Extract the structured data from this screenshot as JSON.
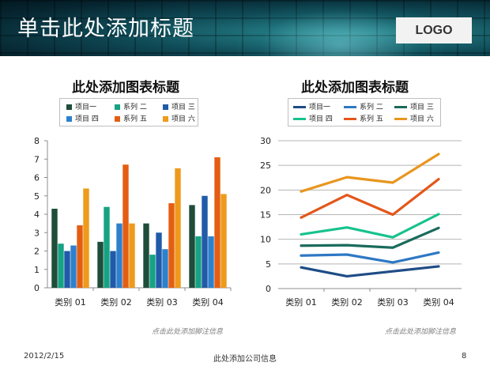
{
  "header": {
    "title": "单击此处添加标题",
    "logo": "LOGO"
  },
  "footer": {
    "date": "2012/2/15",
    "company": "此处添加公司信息",
    "page_number": "8"
  },
  "chart_data": [
    {
      "type": "bar",
      "title": "此处添加图表标题",
      "categories": [
        "类别 01",
        "类别 02",
        "类别 03",
        "类别 04"
      ],
      "ylim": [
        0,
        8
      ],
      "yticks": [
        0,
        1,
        2,
        3,
        4,
        5,
        6,
        7,
        8
      ],
      "grid": false,
      "legend_position": "top",
      "note": "点击此处添加脚注信息",
      "series": [
        {
          "name": "项目一",
          "color": "#1e4d3a",
          "values": [
            4.3,
            2.5,
            3.5,
            4.5
          ]
        },
        {
          "name": "系列 二",
          "color": "#16a383",
          "values": [
            2.4,
            4.4,
            1.8,
            2.8
          ]
        },
        {
          "name": "项目 三",
          "color": "#1f5ba8",
          "values": [
            2.0,
            2.0,
            3.0,
            5.0
          ]
        },
        {
          "name": "项目 四",
          "color": "#2f80cc",
          "values": [
            2.3,
            3.5,
            2.1,
            2.8
          ]
        },
        {
          "name": "系列 五",
          "color": "#e45e12",
          "values": [
            3.4,
            6.7,
            4.6,
            7.1
          ]
        },
        {
          "name": "项目 六",
          "color": "#ee9a1a",
          "values": [
            5.4,
            3.5,
            6.5,
            5.1
          ]
        }
      ]
    },
    {
      "type": "line",
      "title": "此处添加图表标题",
      "categories": [
        "类别 01",
        "类别 02",
        "类别 03",
        "类别 04"
      ],
      "ylim": [
        0,
        30
      ],
      "yticks": [
        0,
        5,
        10,
        15,
        20,
        25,
        30
      ],
      "grid": true,
      "legend_position": "top",
      "note": "点击此处添加脚注信息",
      "series": [
        {
          "name": "项目一",
          "color": "#1e4c86",
          "values": [
            4.3,
            2.5,
            3.5,
            4.5
          ]
        },
        {
          "name": "系列 二",
          "color": "#2e78c4",
          "values": [
            6.7,
            6.9,
            5.3,
            7.3
          ]
        },
        {
          "name": "项目 三",
          "color": "#1a6b5c",
          "values": [
            8.7,
            8.8,
            8.3,
            12.3
          ]
        },
        {
          "name": "项目 四",
          "color": "#17c28c",
          "values": [
            11.0,
            12.4,
            10.4,
            15.1
          ]
        },
        {
          "name": "系列 五",
          "color": "#e4561a",
          "values": [
            14.4,
            19.0,
            15.0,
            22.2
          ]
        },
        {
          "name": "项目 六",
          "color": "#e8961f",
          "values": [
            19.7,
            22.6,
            21.5,
            27.3
          ]
        }
      ]
    }
  ]
}
